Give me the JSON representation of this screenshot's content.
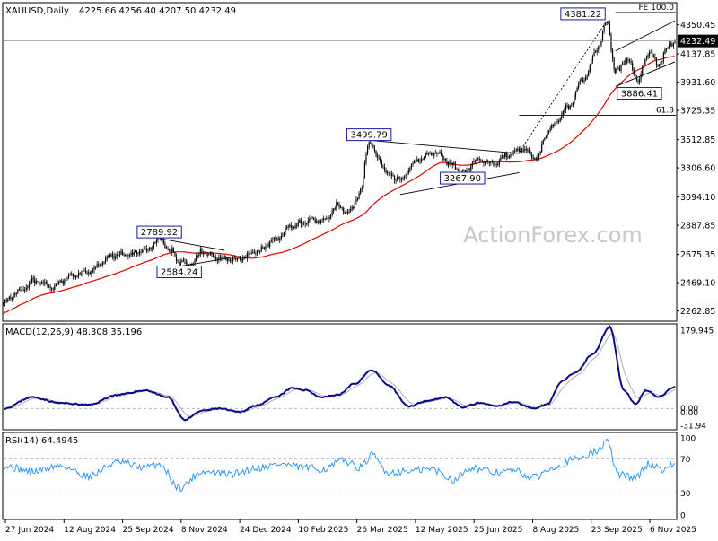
{
  "chart_data": [
    {
      "type": "candlestick",
      "title": "XAUUSD,Daily",
      "ohlc_header": "4225.66 4256.40 4207.50 4232.49",
      "last_price": "4232.49",
      "watermark": "ActionForex.com",
      "ylim": [
        2195,
        4505
      ],
      "y_ticks": [
        "4350.45",
        "4137.85",
        "3931.60",
        "3725.35",
        "3512.85",
        "3306.60",
        "3094.10",
        "2887.85",
        "2675.35",
        "2469.10",
        "2262.85"
      ],
      "x_ticks": [
        "27 Jun 2024",
        "12 Aug 2024",
        "25 Sep 2024",
        "8 Nov 2024",
        "24 Dec 2024",
        "10 Feb 2025",
        "26 Mar 2025",
        "12 May 2025",
        "25 Jun 2025",
        "8 Aug 2025",
        "23 Sep 2025",
        "6 Nov 2025"
      ],
      "anchors": [
        {
          "d": 0,
          "v": 2325
        },
        {
          "d": 10,
          "v": 2400
        },
        {
          "d": 22,
          "v": 2480
        },
        {
          "d": 34,
          "v": 2440
        },
        {
          "d": 48,
          "v": 2520
        },
        {
          "d": 60,
          "v": 2550
        },
        {
          "d": 78,
          "v": 2670
        },
        {
          "d": 90,
          "v": 2680
        },
        {
          "d": 100,
          "v": 2700
        },
        {
          "d": 110,
          "v": 2789
        },
        {
          "d": 118,
          "v": 2700
        },
        {
          "d": 124,
          "v": 2620
        },
        {
          "d": 132,
          "v": 2600
        },
        {
          "d": 140,
          "v": 2700
        },
        {
          "d": 146,
          "v": 2660
        },
        {
          "d": 156,
          "v": 2640
        },
        {
          "d": 166,
          "v": 2640
        },
        {
          "d": 180,
          "v": 2700
        },
        {
          "d": 192,
          "v": 2790
        },
        {
          "d": 204,
          "v": 2880
        },
        {
          "d": 216,
          "v": 2930
        },
        {
          "d": 226,
          "v": 2920
        },
        {
          "d": 236,
          "v": 3030
        },
        {
          "d": 244,
          "v": 2980
        },
        {
          "d": 252,
          "v": 3140
        },
        {
          "d": 258,
          "v": 3499
        },
        {
          "d": 264,
          "v": 3380
        },
        {
          "d": 272,
          "v": 3250
        },
        {
          "d": 280,
          "v": 3220
        },
        {
          "d": 292,
          "v": 3360
        },
        {
          "d": 304,
          "v": 3420
        },
        {
          "d": 316,
          "v": 3340
        },
        {
          "d": 324,
          "v": 3268
        },
        {
          "d": 334,
          "v": 3360
        },
        {
          "d": 346,
          "v": 3340
        },
        {
          "d": 356,
          "v": 3400
        },
        {
          "d": 366,
          "v": 3440
        },
        {
          "d": 376,
          "v": 3380
        },
        {
          "d": 386,
          "v": 3600
        },
        {
          "d": 398,
          "v": 3740
        },
        {
          "d": 410,
          "v": 3960
        },
        {
          "d": 420,
          "v": 4200
        },
        {
          "d": 426,
          "v": 4381
        },
        {
          "d": 432,
          "v": 4000
        },
        {
          "d": 440,
          "v": 4100
        },
        {
          "d": 448,
          "v": 3950
        },
        {
          "d": 456,
          "v": 4150
        },
        {
          "d": 462,
          "v": 4050
        },
        {
          "d": 468,
          "v": 4170
        },
        {
          "d": 474,
          "v": 4232
        }
      ],
      "levels": [
        {
          "label": "FE 100.0",
          "value": 4440
        },
        {
          "label": "61.8",
          "value": 3690
        }
      ],
      "callouts": [
        {
          "text": "2789.92",
          "d": 110,
          "value": 2789.92
        },
        {
          "text": "2584.24",
          "d": 124,
          "value": 2584.24
        },
        {
          "text": "3499.79",
          "d": 258,
          "value": 3499.79
        },
        {
          "text": "3267.90",
          "d": 324,
          "value": 3267.9
        },
        {
          "text": "4381.22",
          "d": 426,
          "value": 4381.22
        },
        {
          "text": "3886.41",
          "d": 432,
          "value": 3886.41
        }
      ],
      "trendlines": [
        {
          "from": {
            "d": 110,
            "v": 2792
          },
          "to": {
            "d": 156,
            "v": 2705
          }
        },
        {
          "from": {
            "d": 124,
            "v": 2588
          },
          "to": {
            "d": 160,
            "v": 2650
          }
        },
        {
          "from": {
            "d": 258,
            "v": 3508
          },
          "to": {
            "d": 364,
            "v": 3412
          }
        },
        {
          "from": {
            "d": 280,
            "v": 3112
          },
          "to": {
            "d": 364,
            "v": 3272
          }
        },
        {
          "from": {
            "d": 364,
            "v": 3420
          },
          "to": {
            "d": 426,
            "v": 4381
          },
          "style": "dotted"
        },
        {
          "from": {
            "d": 432,
            "v": 4160
          },
          "to": {
            "d": 474,
            "v": 4380
          }
        },
        {
          "from": {
            "d": 432,
            "v": 3900
          },
          "to": {
            "d": 474,
            "v": 4080
          }
        }
      ]
    },
    {
      "type": "line",
      "title": "MACD(12,26,9) 48.308 35.196",
      "ylim": [
        -45,
        185
      ],
      "y_ticks": [
        "179.945",
        "0.00",
        "0.00",
        "-31.94"
      ],
      "anchors": [
        {
          "d": 0,
          "v": 0
        },
        {
          "d": 20,
          "v": 25
        },
        {
          "d": 40,
          "v": 12
        },
        {
          "d": 60,
          "v": 8
        },
        {
          "d": 80,
          "v": 30
        },
        {
          "d": 100,
          "v": 40
        },
        {
          "d": 116,
          "v": 25
        },
        {
          "d": 128,
          "v": -25
        },
        {
          "d": 140,
          "v": -5
        },
        {
          "d": 152,
          "v": 0
        },
        {
          "d": 166,
          "v": -8
        },
        {
          "d": 180,
          "v": 8
        },
        {
          "d": 192,
          "v": 25
        },
        {
          "d": 204,
          "v": 45
        },
        {
          "d": 214,
          "v": 40
        },
        {
          "d": 224,
          "v": 25
        },
        {
          "d": 236,
          "v": 30
        },
        {
          "d": 248,
          "v": 55
        },
        {
          "d": 260,
          "v": 85
        },
        {
          "d": 272,
          "v": 50
        },
        {
          "d": 286,
          "v": 5
        },
        {
          "d": 300,
          "v": 18
        },
        {
          "d": 312,
          "v": 25
        },
        {
          "d": 324,
          "v": 3
        },
        {
          "d": 336,
          "v": 12
        },
        {
          "d": 348,
          "v": 5
        },
        {
          "d": 360,
          "v": 15
        },
        {
          "d": 374,
          "v": 0
        },
        {
          "d": 384,
          "v": 10
        },
        {
          "d": 394,
          "v": 60
        },
        {
          "d": 404,
          "v": 80
        },
        {
          "d": 416,
          "v": 120
        },
        {
          "d": 428,
          "v": 180
        },
        {
          "d": 438,
          "v": 40
        },
        {
          "d": 446,
          "v": 10
        },
        {
          "d": 454,
          "v": 40
        },
        {
          "d": 462,
          "v": 25
        },
        {
          "d": 474,
          "v": 48
        }
      ]
    },
    {
      "type": "line",
      "title": "RSI(14) 64.4945",
      "ylim": [
        0,
        100
      ],
      "y_ticks": [
        "100",
        "70",
        "30",
        "0"
      ],
      "anchors": [
        {
          "d": 0,
          "v": 62
        },
        {
          "d": 20,
          "v": 55
        },
        {
          "d": 40,
          "v": 62
        },
        {
          "d": 60,
          "v": 50
        },
        {
          "d": 80,
          "v": 66
        },
        {
          "d": 100,
          "v": 60
        },
        {
          "d": 110,
          "v": 64
        },
        {
          "d": 124,
          "v": 36
        },
        {
          "d": 140,
          "v": 55
        },
        {
          "d": 160,
          "v": 52
        },
        {
          "d": 180,
          "v": 60
        },
        {
          "d": 196,
          "v": 64
        },
        {
          "d": 210,
          "v": 60
        },
        {
          "d": 226,
          "v": 58
        },
        {
          "d": 240,
          "v": 68
        },
        {
          "d": 252,
          "v": 60
        },
        {
          "d": 260,
          "v": 74
        },
        {
          "d": 272,
          "v": 54
        },
        {
          "d": 288,
          "v": 56
        },
        {
          "d": 302,
          "v": 58
        },
        {
          "d": 318,
          "v": 46
        },
        {
          "d": 330,
          "v": 60
        },
        {
          "d": 346,
          "v": 54
        },
        {
          "d": 360,
          "v": 56
        },
        {
          "d": 374,
          "v": 48
        },
        {
          "d": 390,
          "v": 62
        },
        {
          "d": 404,
          "v": 70
        },
        {
          "d": 418,
          "v": 78
        },
        {
          "d": 426,
          "v": 90
        },
        {
          "d": 434,
          "v": 52
        },
        {
          "d": 446,
          "v": 48
        },
        {
          "d": 456,
          "v": 64
        },
        {
          "d": 466,
          "v": 58
        },
        {
          "d": 474,
          "v": 64
        }
      ]
    }
  ]
}
